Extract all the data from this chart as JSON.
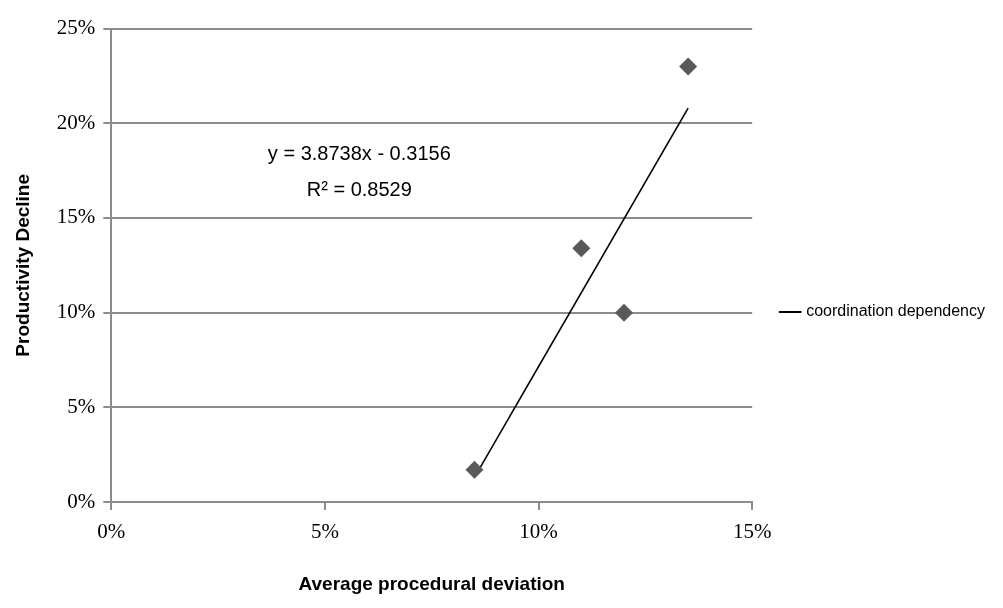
{
  "chart_data": {
    "type": "scatter",
    "xlabel": "Average procedural deviation",
    "ylabel": "Productivity Decline",
    "series": [
      {
        "color": "#595959",
        "x": [
          8.5,
          11.0,
          12.0,
          13.5
        ],
        "values": [
          1.7,
          13.4,
          10.0,
          23.0
        ],
        "marker": "diamond"
      },
      {
        "type": "line",
        "name": "coordination dependency",
        "color": "#000000",
        "x": [
          8.5,
          13.5
        ],
        "values": [
          1.3,
          20.8
        ],
        "marker": "none",
        "line_style": "solid"
      }
    ],
    "xlim": [
      0,
      15
    ],
    "xticks": [
      {
        "value": 0,
        "label": "0%"
      },
      {
        "value": 5,
        "label": "5%"
      },
      {
        "value": 10,
        "label": "10%"
      },
      {
        "value": 15,
        "label": "15%"
      }
    ],
    "ylim": [
      0,
      25
    ],
    "yticks": [
      {
        "value": 0,
        "label": "0%"
      },
      {
        "value": 5,
        "label": "5%"
      },
      {
        "value": 10,
        "label": "10%"
      },
      {
        "value": 15,
        "label": "15%"
      },
      {
        "value": 20,
        "label": "20%"
      },
      {
        "value": 25,
        "label": "25%"
      }
    ],
    "annotations": [
      "y = 3.8738x - 0.3156",
      "R² = 0.8529"
    ],
    "grid": "y",
    "legend": "right"
  }
}
